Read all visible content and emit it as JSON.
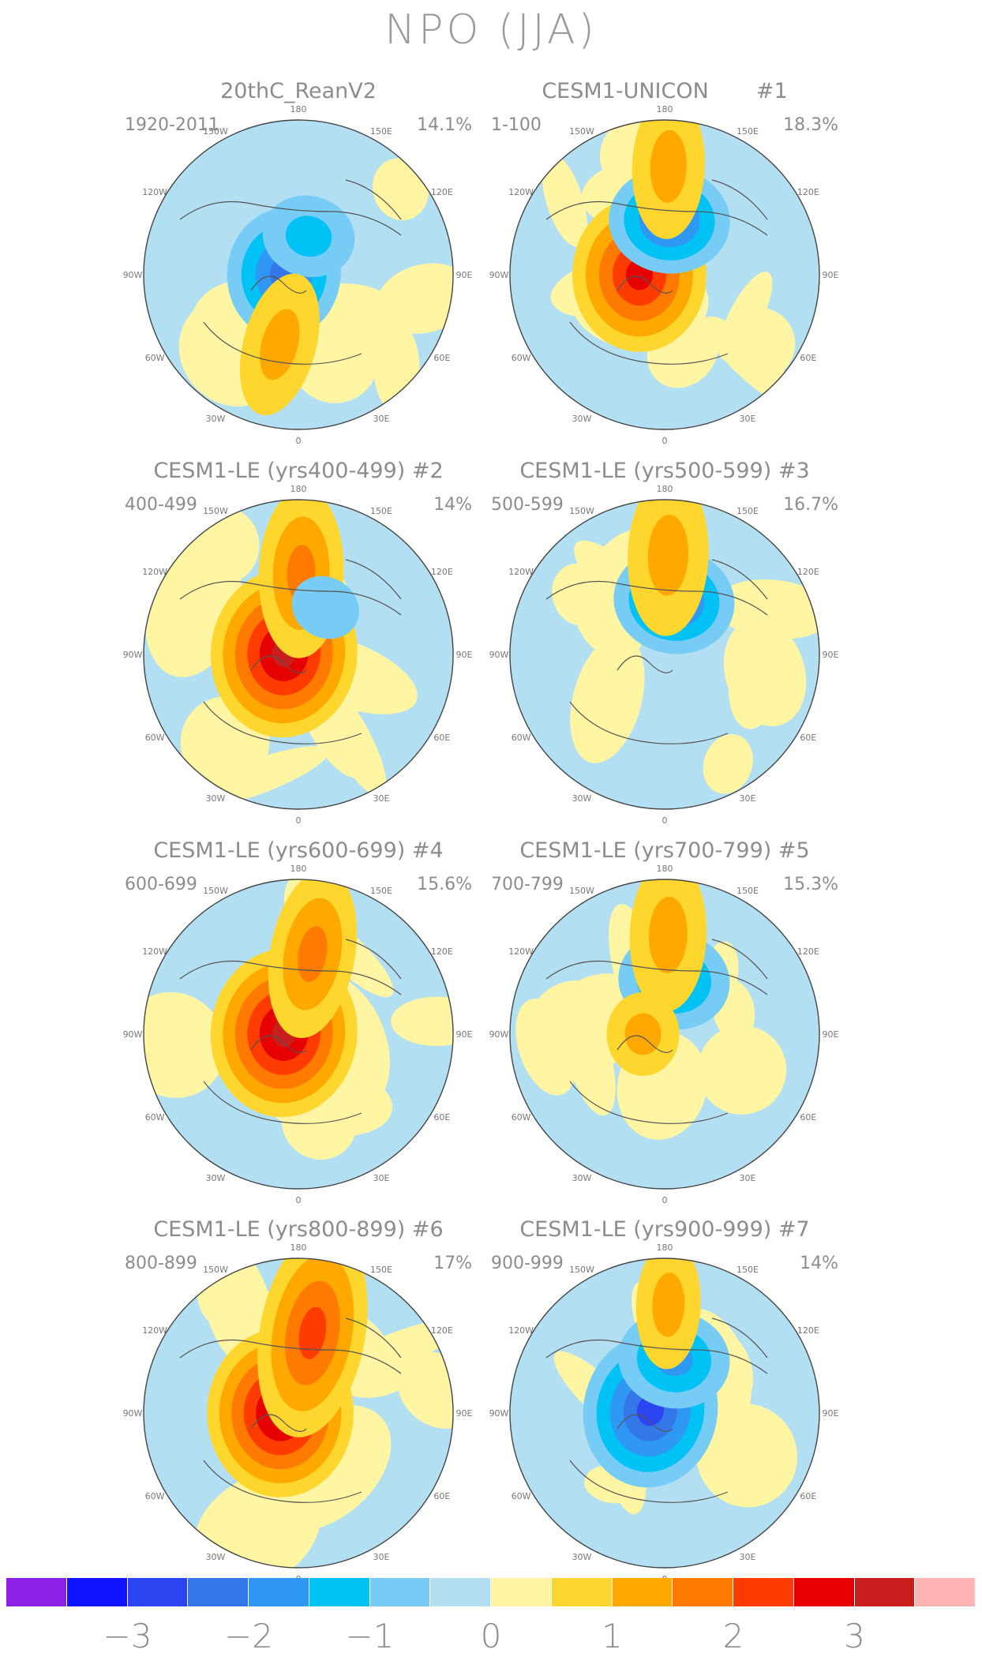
{
  "title": "NPO (JJA)",
  "longitude_labels": [
    "180",
    "150E",
    "120E",
    "90E",
    "60E",
    "30E",
    "0",
    "30W",
    "60W",
    "90W",
    "120W",
    "150W"
  ],
  "panels": [
    {
      "title": "20thC_ReanV2",
      "period": "1920-2011",
      "variance": "14.1%",
      "features": [
        {
          "sign": "neg",
          "lon": -95,
          "colat": 8,
          "strength": 2.0
        },
        {
          "sign": "neg",
          "lon": 165,
          "colat": 22,
          "strength": 1.2
        },
        {
          "sign": "pos",
          "lon": -15,
          "colat": 40,
          "strength": 1.0
        }
      ]
    },
    {
      "title": "CESM1-UNICON       #1",
      "period": "1-100",
      "variance": "18.3%",
      "features": [
        {
          "sign": "pos",
          "lon": -90,
          "colat": 14,
          "strength": 2.5
        },
        {
          "sign": "neg",
          "lon": 175,
          "colat": 30,
          "strength": 1.8
        },
        {
          "sign": "pos",
          "lon": 178,
          "colat": 60,
          "strength": 1.0
        }
      ]
    },
    {
      "title": "CESM1-LE (yrs400-499) #2",
      "period": "400-499",
      "variance": "14%",
      "features": [
        {
          "sign": "pos",
          "lon": -95,
          "colat": 8,
          "strength": 2.8
        },
        {
          "sign": "pos",
          "lon": 178,
          "colat": 45,
          "strength": 1.3
        },
        {
          "sign": "neg",
          "lon": 150,
          "colat": 30,
          "strength": 0.7
        }
      ]
    },
    {
      "title": "CESM1-LE (yrs500-599) #3",
      "period": "500-599",
      "variance": "16.7%",
      "features": [
        {
          "sign": "neg",
          "lon": 170,
          "colat": 30,
          "strength": 1.8
        },
        {
          "sign": "pos",
          "lon": 178,
          "colat": 55,
          "strength": 1.2
        }
      ]
    },
    {
      "title": "CESM1-LE (yrs600-699) #4",
      "period": "600-699",
      "variance": "15.6%",
      "features": [
        {
          "sign": "pos",
          "lon": -95,
          "colat": 8,
          "strength": 2.8
        },
        {
          "sign": "pos",
          "lon": 170,
          "colat": 45,
          "strength": 1.3
        }
      ]
    },
    {
      "title": "CESM1-LE (yrs700-799) #5",
      "period": "700-799",
      "variance": "15.3%",
      "features": [
        {
          "sign": "neg",
          "lon": 170,
          "colat": 30,
          "strength": 1.6
        },
        {
          "sign": "pos",
          "lon": 178,
          "colat": 55,
          "strength": 1.1
        },
        {
          "sign": "pos",
          "lon": -90,
          "colat": 12,
          "strength": 1.0
        }
      ]
    },
    {
      "title": "CESM1-LE (yrs800-899) #6",
      "period": "800-899",
      "variance": "17%",
      "features": [
        {
          "sign": "pos",
          "lon": -90,
          "colat": 10,
          "strength": 2.8
        },
        {
          "sign": "pos",
          "lon": 170,
          "colat": 45,
          "strength": 1.8
        }
      ]
    },
    {
      "title": "CESM1-LE (yrs900-999) #7",
      "period": "900-999",
      "variance": "14%",
      "features": [
        {
          "sign": "neg",
          "lon": -100,
          "colat": 8,
          "strength": 2.5
        },
        {
          "sign": "neg",
          "lon": 170,
          "colat": 30,
          "strength": 1.6
        },
        {
          "sign": "pos",
          "lon": 178,
          "colat": 60,
          "strength": 0.8
        }
      ]
    }
  ],
  "colorbar": {
    "colors": [
      "#8c21e6",
      "#0f14ff",
      "#2b44f2",
      "#3477e8",
      "#2f97f4",
      "#00c2f5",
      "#76ccf4",
      "#b3dff2",
      "#fff5a3",
      "#ffd62e",
      "#ffa800",
      "#ff7a00",
      "#ff3c00",
      "#e60000",
      "#c81e1e",
      "#ffb3b3"
    ],
    "labels": [
      "−3",
      "−2",
      "−1",
      "0",
      "1",
      "2",
      "3"
    ]
  }
}
